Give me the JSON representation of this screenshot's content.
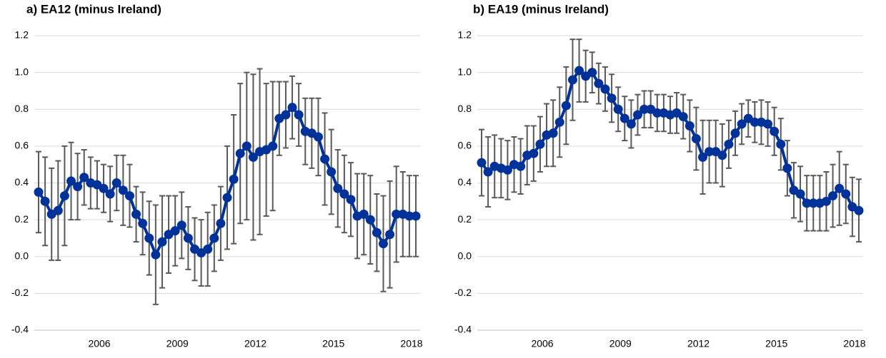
{
  "chart_data": [
    {
      "type": "line",
      "title": "a) EA12 (minus Ireland)",
      "categories": [
        null,
        null,
        null,
        null,
        null,
        null,
        null,
        null,
        null,
        null,
        "2006",
        null,
        null,
        null,
        null,
        null,
        null,
        null,
        null,
        null,
        null,
        null,
        "2009",
        null,
        null,
        null,
        null,
        null,
        null,
        null,
        null,
        null,
        null,
        null,
        "2012",
        null,
        null,
        null,
        null,
        null,
        null,
        null,
        null,
        null,
        null,
        null,
        "2015",
        null,
        null,
        null,
        null,
        null,
        null,
        null,
        null,
        null,
        null,
        null,
        "2018"
      ],
      "values": [
        0.35,
        0.3,
        0.23,
        0.25,
        0.33,
        0.41,
        0.38,
        0.43,
        0.4,
        0.39,
        0.37,
        0.34,
        0.4,
        0.36,
        0.33,
        0.23,
        0.18,
        0.1,
        0.01,
        0.08,
        0.12,
        0.14,
        0.17,
        0.1,
        0.04,
        0.02,
        0.04,
        0.1,
        0.18,
        0.32,
        0.42,
        0.56,
        0.6,
        0.54,
        0.57,
        0.58,
        0.6,
        0.75,
        0.77,
        0.81,
        0.77,
        0.68,
        0.67,
        0.65,
        0.53,
        0.46,
        0.37,
        0.34,
        0.31,
        0.22,
        0.23,
        0.2,
        0.13,
        0.07,
        0.12,
        0.23,
        0.23,
        0.22,
        0.22
      ],
      "errors": [
        0.22,
        0.24,
        0.25,
        0.27,
        0.27,
        0.21,
        0.18,
        0.15,
        0.14,
        0.13,
        0.13,
        0.15,
        0.15,
        0.19,
        0.17,
        0.15,
        0.17,
        0.2,
        0.27,
        0.25,
        0.21,
        0.19,
        0.18,
        0.17,
        0.17,
        0.18,
        0.2,
        0.18,
        0.2,
        0.28,
        0.35,
        0.38,
        0.4,
        0.45,
        0.45,
        0.36,
        0.35,
        0.2,
        0.18,
        0.17,
        0.17,
        0.18,
        0.19,
        0.21,
        0.25,
        0.23,
        0.21,
        0.21,
        0.2,
        0.23,
        0.22,
        0.24,
        0.21,
        0.26,
        0.29,
        0.26,
        0.23,
        0.22,
        0.22
      ],
      "color": "#003299",
      "error_color": "#595959",
      "ylim": [
        -0.4,
        1.2
      ],
      "yticks": [
        -0.4,
        -0.2,
        {
          "value": 0,
          "label": "0.0"
        },
        0.2,
        0.4,
        0.6,
        0.8,
        {
          "value": 1,
          "label": "1.0"
        },
        1.2
      ],
      "grid": true
    },
    {
      "type": "line",
      "title": "b) EA19 (minus Ireland)",
      "categories": [
        null,
        null,
        null,
        null,
        null,
        null,
        null,
        null,
        null,
        null,
        "2006",
        null,
        null,
        null,
        null,
        null,
        null,
        null,
        null,
        null,
        null,
        null,
        "2009",
        null,
        null,
        null,
        null,
        null,
        null,
        null,
        null,
        null,
        null,
        null,
        "2012",
        null,
        null,
        null,
        null,
        null,
        null,
        null,
        null,
        null,
        null,
        null,
        "2015",
        null,
        null,
        null,
        null,
        null,
        null,
        null,
        null,
        null,
        null,
        null,
        "2018"
      ],
      "values": [
        0.51,
        0.46,
        0.49,
        0.48,
        0.47,
        0.5,
        0.49,
        0.55,
        0.56,
        0.61,
        0.66,
        0.67,
        0.73,
        0.82,
        0.96,
        1.01,
        0.98,
        1.0,
        0.94,
        0.91,
        0.86,
        0.8,
        0.75,
        0.72,
        0.77,
        0.8,
        0.8,
        0.78,
        0.78,
        0.77,
        0.78,
        0.76,
        0.71,
        0.64,
        0.54,
        0.57,
        0.57,
        0.55,
        0.61,
        0.67,
        0.72,
        0.75,
        0.73,
        0.73,
        0.72,
        0.68,
        0.61,
        0.48,
        0.36,
        0.34,
        0.29,
        0.29,
        0.29,
        0.3,
        0.33,
        0.37,
        0.34,
        0.27,
        0.25
      ],
      "errors": [
        0.18,
        0.19,
        0.17,
        0.16,
        0.16,
        0.15,
        0.15,
        0.16,
        0.15,
        0.15,
        0.17,
        0.18,
        0.19,
        0.21,
        0.22,
        0.17,
        0.14,
        0.11,
        0.11,
        0.12,
        0.13,
        0.12,
        0.12,
        0.13,
        0.11,
        0.1,
        0.1,
        0.1,
        0.1,
        0.1,
        0.11,
        0.12,
        0.14,
        0.17,
        0.2,
        0.17,
        0.17,
        0.17,
        0.13,
        0.12,
        0.11,
        0.1,
        0.11,
        0.12,
        0.12,
        0.13,
        0.14,
        0.15,
        0.15,
        0.15,
        0.15,
        0.15,
        0.15,
        0.16,
        0.17,
        0.2,
        0.16,
        0.16,
        0.17
      ],
      "color": "#003299",
      "error_color": "#595959",
      "ylim": [
        -0.4,
        1.2
      ],
      "yticks": [
        -0.4,
        -0.2,
        {
          "value": 0,
          "label": "0.0"
        },
        0.2,
        0.4,
        0.6,
        0.8,
        {
          "value": 1,
          "label": "1.0"
        },
        1.2
      ],
      "grid": true
    }
  ]
}
